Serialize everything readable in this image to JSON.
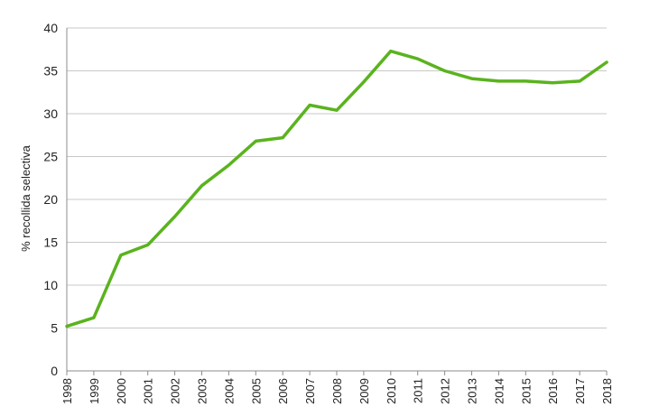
{
  "chart_data": {
    "type": "line",
    "title": "",
    "xlabel": "",
    "ylabel": "% recollida selectiva",
    "ylim": [
      0,
      40
    ],
    "yticks": [
      0,
      5,
      10,
      15,
      20,
      25,
      30,
      35,
      40
    ],
    "grid": true,
    "legend": "none",
    "categories": [
      "1998",
      "1999",
      "2000",
      "2001",
      "2002",
      "2003",
      "2004",
      "2005",
      "2006",
      "2007",
      "2008",
      "2009",
      "2010",
      "2011",
      "2012",
      "2013",
      "2014",
      "2015",
      "2016",
      "2017",
      "2018"
    ],
    "series": [
      {
        "color": "#5ab31e",
        "values": [
          5.2,
          6.2,
          13.5,
          14.7,
          18.0,
          21.6,
          24.0,
          26.8,
          27.2,
          31.0,
          30.4,
          33.7,
          37.3,
          36.4,
          35.0,
          34.1,
          33.8,
          33.8,
          33.6,
          33.8,
          36.0
        ]
      }
    ]
  }
}
